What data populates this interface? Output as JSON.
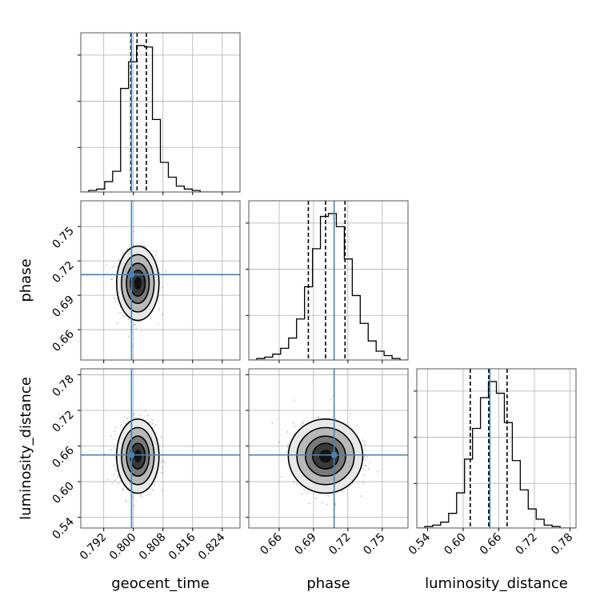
{
  "chart_data": {
    "type": "corner",
    "parameters": [
      "geocent_time",
      "phase",
      "luminosity_distance"
    ],
    "ticks": {
      "geocent_time": [
        "0.792",
        "0.800",
        "0.808",
        "0.816",
        "0.824"
      ],
      "phase": [
        "0.66",
        "0.69",
        "0.72",
        "0.75"
      ],
      "luminosity_distance_x": [
        "0.54",
        "0.60",
        "0.66",
        "0.72",
        "0.78"
      ],
      "luminosity_distance_y": [
        "0.54",
        "0.60",
        "0.66",
        "0.72",
        "0.78"
      ],
      "phase_y": [
        "0.66",
        "0.69",
        "0.72",
        "0.75"
      ]
    },
    "ranges": {
      "geocent_time": [
        0.7858,
        0.8288
      ],
      "phase": [
        0.6335,
        0.7725
      ],
      "luminosity_distance": [
        0.522,
        0.79
      ]
    },
    "truths": {
      "geocent_time": 0.7995,
      "phase": 0.708,
      "luminosity_distance": 0.645
    },
    "quantiles": {
      "geocent_time": [
        0.7993,
        0.801,
        0.8035
      ],
      "phase": [
        0.6855,
        0.7005,
        0.7175
      ],
      "luminosity_distance": [
        0.612,
        0.643,
        0.674
      ]
    },
    "histograms": {
      "geocent_time": {
        "start": 0.7858,
        "width": 0.00215,
        "counts": [
          0,
          1,
          2,
          7,
          14,
          70,
          88,
          99,
          98,
          49,
          20,
          10,
          4,
          2,
          1,
          0,
          0,
          0,
          0,
          0
        ]
      },
      "phase": {
        "start": 0.6335,
        "width": 0.00695,
        "counts": [
          0,
          1,
          2,
          4,
          8,
          15,
          28,
          50,
          76,
          98,
          100,
          91,
          69,
          44,
          25,
          13,
          6,
          3,
          1,
          0
        ]
      },
      "luminosity_distance": {
        "start": 0.522,
        "width": 0.0134,
        "counts": [
          0,
          1,
          2,
          4,
          10,
          24,
          47,
          68,
          89,
          100,
          92,
          72,
          46,
          26,
          13,
          6,
          2,
          1,
          0,
          0
        ]
      }
    },
    "grid": true
  }
}
